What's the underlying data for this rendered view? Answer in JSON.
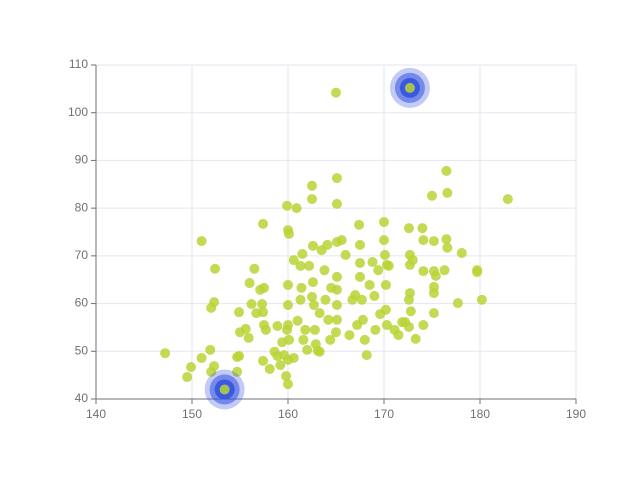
{
  "chart_data": {
    "type": "scatter",
    "xlim": [
      140,
      190
    ],
    "xticks": [
      140,
      150,
      160,
      170,
      180,
      190
    ],
    "ylim": [
      40,
      110
    ],
    "yticks": [
      40,
      50,
      60,
      70,
      80,
      90,
      100,
      110
    ],
    "grid": true,
    "series": [
      {
        "color": "#b8d335",
        "x": [
          147.2,
          149.5,
          149.9,
          151.0,
          151.0,
          151.9,
          152.0,
          152.3,
          152.4,
          152.3,
          152.0,
          154.7,
          154.7,
          154.9,
          155.0,
          154.9,
          155.6,
          155.9,
          156.0,
          156.2,
          156.5,
          156.7,
          157.1,
          157.4,
          157.4,
          157.3,
          157.5,
          157.5,
          157.7,
          157.4,
          158.1,
          158.6,
          158.9,
          158.9,
          159.2,
          159.4,
          159.6,
          159.8,
          160.0,
          160.0,
          159.9,
          160.0,
          160.1,
          160.0,
          160.0,
          159.9,
          160.0,
          160.1,
          160.6,
          160.6,
          160.9,
          161.0,
          161.3,
          161.3,
          161.4,
          161.5,
          161.6,
          161.8,
          162.0,
          162.2,
          162.5,
          162.5,
          162.6,
          162.6,
          162.5,
          162.7,
          162.8,
          162.9,
          163.1,
          163.3,
          163.3,
          163.5,
          163.8,
          163.9,
          164.1,
          164.2,
          164.4,
          164.5,
          165.0,
          165.1,
          165.1,
          165.1,
          165.1,
          165.1,
          165.1,
          165.1,
          165.0,
          165.6,
          166.0,
          166.4,
          166.7,
          167.0,
          167.2,
          167.4,
          167.5,
          167.5,
          167.5,
          167.7,
          167.8,
          168.0,
          168.2,
          168.5,
          168.8,
          169.0,
          169.1,
          169.4,
          169.6,
          170.0,
          170.0,
          170.1,
          170.2,
          170.2,
          170.3,
          170.3,
          170.5,
          171.1,
          171.5,
          171.9,
          172.2,
          172.6,
          172.7,
          172.7,
          172.6,
          172.8,
          172.7,
          172.6,
          173.0,
          173.3,
          174.0,
          174.1,
          174.1,
          174.1,
          175.0,
          175.2,
          175.2,
          175.2,
          175.2,
          175.2,
          175.4,
          176.3,
          176.5,
          176.6,
          176.5,
          176.6,
          177.7,
          178.1,
          179.7,
          179.7,
          180.2,
          182.9
        ],
        "values": [
          49.6,
          44.6,
          46.7,
          48.6,
          73.1,
          50.3,
          45.7,
          46.9,
          67.3,
          60.3,
          59.1,
          48.8,
          45.7,
          49.0,
          54.0,
          58.2,
          54.7,
          52.8,
          64.3,
          59.9,
          67.3,
          58.0,
          62.9,
          76.7,
          48.0,
          59.9,
          63.3,
          55.5,
          54.5,
          58.2,
          46.3,
          49.9,
          55.3,
          49.0,
          47.1,
          51.9,
          49.2,
          44.8,
          43.1,
          48.2,
          80.5,
          75.4,
          74.6,
          63.9,
          59.7,
          54.5,
          55.5,
          52.4,
          48.6,
          69.1,
          80.0,
          56.4,
          60.8,
          67.9,
          63.3,
          70.4,
          52.4,
          54.5,
          50.3,
          67.9,
          84.7,
          81.9,
          72.1,
          64.5,
          61.4,
          59.7,
          54.5,
          51.5,
          50.1,
          49.9,
          58.0,
          71.2,
          67.0,
          60.8,
          72.3,
          56.6,
          52.4,
          63.3,
          104.2,
          86.3,
          80.9,
          72.9,
          65.6,
          62.9,
          59.7,
          56.6,
          54.0,
          73.3,
          70.2,
          53.4,
          60.8,
          61.8,
          55.5,
          76.5,
          72.3,
          68.5,
          65.6,
          60.8,
          56.6,
          52.4,
          49.2,
          63.9,
          68.7,
          61.6,
          54.5,
          67.0,
          57.8,
          77.1,
          73.3,
          70.2,
          63.9,
          58.7,
          55.5,
          68.1,
          67.9,
          54.5,
          53.4,
          56.1,
          56.1,
          75.8,
          70.2,
          62.2,
          60.8,
          58.4,
          68.1,
          55.1,
          69.1,
          52.6,
          75.8,
          66.8,
          55.5,
          73.3,
          82.6,
          63.5,
          62.2,
          66.8,
          73.1,
          58.0,
          65.8,
          67.0,
          87.8,
          83.2,
          73.5,
          71.7,
          60.1,
          70.6,
          67.0,
          66.6,
          60.8,
          81.9
        ]
      },
      {
        "color": "#b8d335",
        "effect_color": "#3454e0",
        "x": [
          172.7,
          153.4
        ],
        "values": [
          105.2,
          42
        ]
      }
    ]
  }
}
